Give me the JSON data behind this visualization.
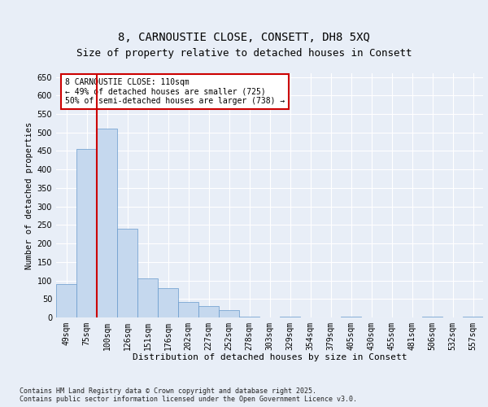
{
  "title_line1": "8, CARNOUSTIE CLOSE, CONSETT, DH8 5XQ",
  "title_line2": "Size of property relative to detached houses in Consett",
  "xlabel": "Distribution of detached houses by size in Consett",
  "ylabel": "Number of detached properties",
  "categories": [
    "49sqm",
    "75sqm",
    "100sqm",
    "126sqm",
    "151sqm",
    "176sqm",
    "202sqm",
    "227sqm",
    "252sqm",
    "278sqm",
    "303sqm",
    "329sqm",
    "354sqm",
    "379sqm",
    "405sqm",
    "430sqm",
    "455sqm",
    "481sqm",
    "506sqm",
    "532sqm",
    "557sqm"
  ],
  "values": [
    90,
    455,
    510,
    240,
    105,
    80,
    42,
    30,
    20,
    3,
    0,
    2,
    0,
    0,
    2,
    0,
    0,
    0,
    2,
    0,
    2
  ],
  "bar_color": "#c5d8ee",
  "bar_edge_color": "#6699cc",
  "red_line_color": "#cc0000",
  "annotation_text": "8 CARNOUSTIE CLOSE: 110sqm\n← 49% of detached houses are smaller (725)\n50% of semi-detached houses are larger (738) →",
  "annotation_box_color": "#ffffff",
  "annotation_box_edge": "#cc0000",
  "ylim": [
    0,
    660
  ],
  "yticks": [
    0,
    50,
    100,
    150,
    200,
    250,
    300,
    350,
    400,
    450,
    500,
    550,
    600,
    650
  ],
  "footnote": "Contains HM Land Registry data © Crown copyright and database right 2025.\nContains public sector information licensed under the Open Government Licence v3.0.",
  "background_color": "#e8eef7",
  "plot_bg_color": "#e8eef7",
  "grid_color": "#ffffff",
  "title_fontsize": 10,
  "subtitle_fontsize": 9,
  "tick_fontsize": 7,
  "annotation_fontsize": 7,
  "ylabel_fontsize": 7.5,
  "xlabel_fontsize": 8
}
